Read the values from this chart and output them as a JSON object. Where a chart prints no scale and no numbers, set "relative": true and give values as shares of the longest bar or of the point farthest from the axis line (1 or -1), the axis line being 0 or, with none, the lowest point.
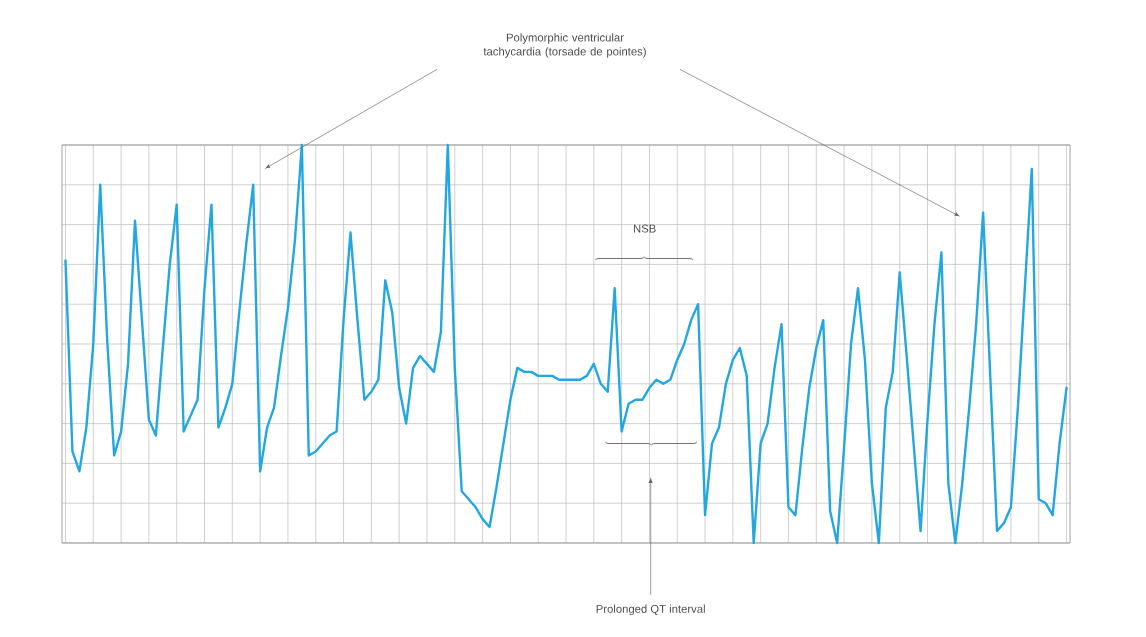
{
  "chart_data": {
    "type": "line",
    "relative": true,
    "color": "#22a7e0",
    "grid": true,
    "annotations": [
      "Polymorphic ventricular tachycardia (torsade de pointes)",
      "NSB",
      "Prolonged QT interval"
    ],
    "categories": [
      null,
      null,
      null,
      null,
      null,
      null,
      null,
      null,
      null,
      null,
      null,
      null,
      null,
      null,
      null,
      null,
      null,
      null,
      null,
      null,
      null,
      null,
      null,
      null,
      null,
      null,
      null,
      null,
      null,
      null,
      null,
      null,
      null,
      null,
      null,
      null,
      null,
      null,
      null,
      null,
      null,
      null,
      null,
      null,
      null,
      null,
      null,
      null,
      null,
      null,
      null,
      null,
      null,
      null,
      null,
      null,
      null,
      null,
      null,
      null,
      null,
      null,
      null,
      null,
      null,
      null,
      null,
      null,
      null,
      null,
      null,
      null,
      null,
      null,
      null,
      null,
      null,
      null,
      null,
      null,
      null,
      null,
      null,
      null,
      null,
      null,
      null,
      null,
      null,
      null,
      null,
      null,
      null,
      null,
      null,
      null,
      null,
      null,
      null,
      null,
      null,
      null,
      null,
      null,
      null,
      null,
      null,
      null,
      null,
      null,
      null,
      null,
      null,
      null,
      null,
      null,
      null,
      null,
      null,
      null,
      null,
      null,
      null,
      null,
      null,
      null,
      null,
      null,
      null,
      null,
      null,
      null,
      null,
      null,
      null,
      null,
      null,
      null,
      null,
      null,
      null,
      null,
      null,
      null,
      null
    ],
    "values": [
      0.71,
      0.23,
      0.18,
      0.29,
      0.5,
      0.9,
      0.51,
      0.22,
      0.28,
      0.45,
      0.81,
      0.56,
      0.31,
      0.27,
      0.49,
      0.7,
      0.85,
      0.28,
      0.32,
      0.36,
      0.64,
      0.85,
      0.29,
      0.34,
      0.4,
      0.58,
      0.75,
      0.9,
      0.18,
      0.29,
      0.34,
      0.47,
      0.59,
      0.76,
      1.0,
      0.22,
      0.23,
      0.25,
      0.27,
      0.28,
      0.56,
      0.78,
      0.56,
      0.36,
      0.38,
      0.41,
      0.66,
      0.58,
      0.39,
      0.3,
      0.44,
      0.47,
      0.45,
      0.43,
      0.53,
      1.0,
      0.44,
      0.13,
      0.11,
      0.09,
      0.06,
      0.04,
      0.14,
      0.25,
      0.36,
      0.44,
      0.43,
      0.43,
      0.42,
      0.42,
      0.42,
      0.41,
      0.41,
      0.41,
      0.41,
      0.42,
      0.45,
      0.4,
      0.38,
      0.64,
      0.28,
      0.35,
      0.36,
      0.36,
      0.39,
      0.41,
      0.4,
      0.41,
      0.46,
      0.5,
      0.56,
      0.6,
      0.07,
      0.25,
      0.29,
      0.4,
      0.46,
      0.49,
      0.42,
      0.0,
      0.25,
      0.3,
      0.44,
      0.55,
      0.09,
      0.07,
      0.24,
      0.39,
      0.49,
      0.56,
      0.08,
      0.0,
      0.24,
      0.5,
      0.64,
      0.46,
      0.15,
      0.0,
      0.34,
      0.43,
      0.68,
      0.47,
      0.25,
      0.03,
      0.31,
      0.55,
      0.73,
      0.15,
      0.0,
      0.15,
      0.34,
      0.55,
      0.83,
      0.43,
      0.03,
      0.05,
      0.09,
      0.34,
      0.64,
      0.94,
      0.11,
      0.1,
      0.07,
      0.25,
      0.39
    ]
  }
}
